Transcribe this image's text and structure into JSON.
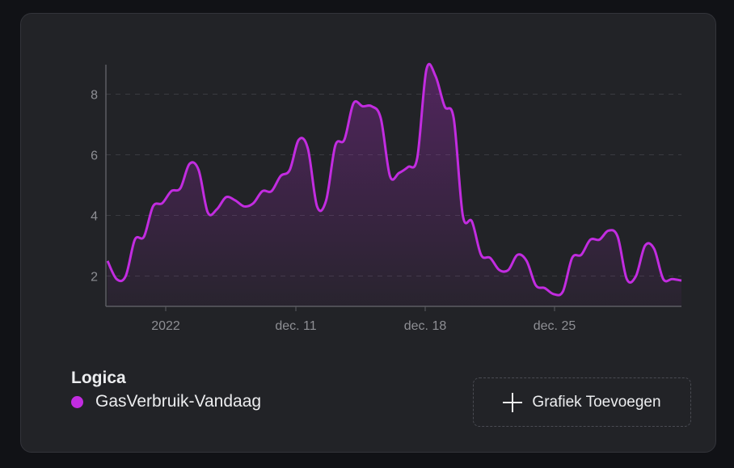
{
  "chart_data": {
    "type": "area",
    "x_tick_labels": [
      "2022",
      "dec. 11",
      "dec. 18",
      "dec. 25"
    ],
    "y_ticks": [
      2,
      4,
      6,
      8
    ],
    "ylim": [
      1,
      9
    ],
    "grid": "horizontal dashed",
    "series": [
      {
        "name": "GasVerbruik-Vandaag",
        "color": "#c22ce0",
        "values": [
          2.5,
          1.9,
          2.0,
          3.2,
          3.3,
          4.3,
          4.4,
          4.8,
          4.9,
          5.7,
          5.5,
          4.1,
          4.2,
          4.6,
          4.5,
          4.3,
          4.4,
          4.8,
          4.8,
          5.3,
          5.5,
          6.5,
          6.2,
          4.3,
          4.5,
          6.3,
          6.5,
          7.7,
          7.6,
          7.6,
          7.2,
          5.3,
          5.4,
          5.6,
          5.9,
          8.8,
          8.6,
          7.6,
          7.2,
          4.0,
          3.8,
          2.7,
          2.6,
          2.2,
          2.2,
          2.7,
          2.5,
          1.7,
          1.6,
          1.4,
          1.5,
          2.6,
          2.7,
          3.2,
          3.2,
          3.5,
          3.3,
          1.9,
          2.0,
          3.0,
          2.9,
          1.9,
          1.9,
          1.85
        ]
      }
    ]
  },
  "legend": {
    "title": "Logica",
    "items": [
      {
        "label": "GasVerbruik-Vandaag",
        "color": "#c22ce0"
      }
    ]
  },
  "add_button": {
    "label": "Grafiek Toevoegen",
    "icon": "plus-icon"
  }
}
